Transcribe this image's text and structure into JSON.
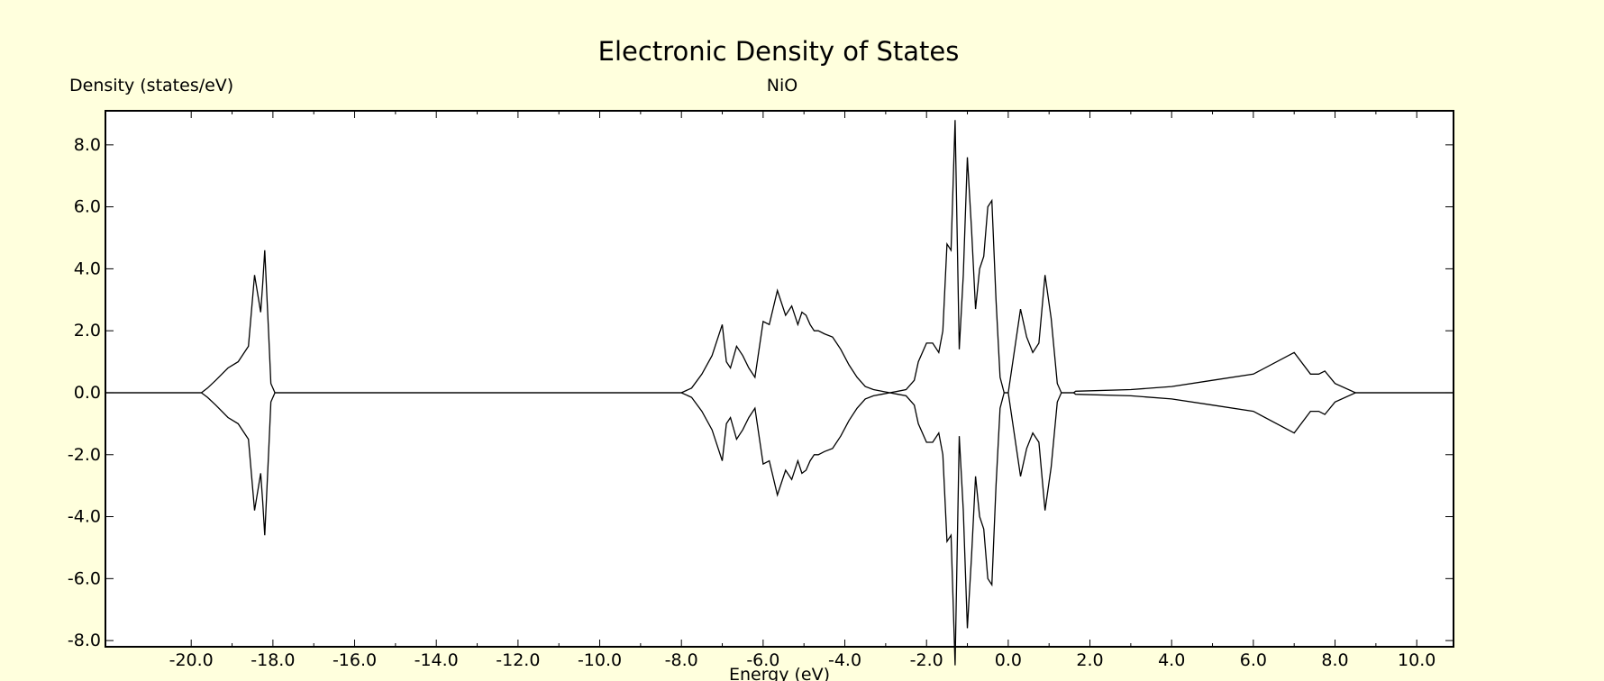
{
  "chart_data": {
    "type": "line",
    "title": "Electronic Density of States",
    "subtitle": "NiO",
    "xlabel": "Energy (eV)",
    "ylabel": "Density (states/eV)",
    "xlim": [
      -22.1,
      10.9
    ],
    "ylim": [
      -8.2,
      9.1
    ],
    "x_ticks": [
      "-20.0",
      "-18.0",
      "-16.0",
      "-14.0",
      "-12.0",
      "-10.0",
      "-8.0",
      "-6.0",
      "-4.0",
      "-2.0",
      "0.0",
      "2.0",
      "4.0",
      "6.0",
      "8.0",
      "10.0"
    ],
    "x_tick_values": [
      -20,
      -18,
      -16,
      -14,
      -12,
      -10,
      -8,
      -6,
      -4,
      -2,
      0,
      2,
      4,
      6,
      8,
      10
    ],
    "y_ticks": [
      "8.0",
      "6.0",
      "4.0",
      "2.0",
      "0.0",
      "-2.0",
      "-4.0",
      "-6.0",
      "-8.0"
    ],
    "y_tick_values": [
      8,
      6,
      4,
      2,
      0,
      -2,
      -4,
      -6,
      -8
    ],
    "grid": false,
    "series": [
      {
        "mirrored": true,
        "x": [
          -22.1,
          -20.0,
          -19.75,
          -19.6,
          -19.4,
          -19.1,
          -18.85,
          -18.6,
          -18.45,
          -18.3,
          -18.25,
          -18.2,
          -18.1,
          -18.05,
          -17.95,
          -17.9,
          -12.0,
          -8.0,
          -7.75,
          -7.5,
          -7.25,
          -7.0,
          -6.9,
          -6.8,
          -6.65,
          -6.5,
          -6.35,
          -6.2,
          -6.0,
          -5.85,
          -5.65,
          -5.45,
          -5.3,
          -5.15,
          -5.05,
          -4.95,
          -4.85,
          -4.75,
          -4.65,
          -4.5,
          -4.3,
          -4.1,
          -3.9,
          -3.7,
          -3.5,
          -3.3,
          -3.1,
          -2.9,
          -2.7,
          -2.5,
          -2.3,
          -2.2,
          -2.0,
          -1.85,
          -1.7,
          -1.6,
          -1.5,
          -1.4,
          -1.3,
          -1.2,
          -1.1,
          -1.0,
          -0.9,
          -0.8,
          -0.7,
          -0.6,
          -0.5,
          -0.4,
          -0.3,
          -0.2,
          -0.1,
          0.0,
          0.3,
          0.45,
          0.6,
          0.75,
          0.9,
          1.05,
          1.2,
          1.3,
          1.45,
          1.6,
          1.65,
          3.0,
          4.0,
          5.0,
          6.0,
          7.0,
          7.4,
          7.6,
          7.75,
          8.0,
          8.5,
          8.7,
          9.0,
          10.9
        ],
        "y": [
          0,
          0,
          0,
          0.15,
          0.4,
          0.8,
          1.0,
          1.5,
          3.8,
          2.6,
          3.5,
          4.6,
          1.8,
          0.3,
          0,
          0,
          0,
          0,
          0.15,
          0.6,
          1.2,
          2.2,
          1.0,
          0.8,
          1.5,
          1.2,
          0.8,
          0.5,
          2.3,
          2.2,
          3.3,
          2.5,
          2.8,
          2.2,
          2.6,
          2.5,
          2.2,
          2.0,
          2.0,
          1.9,
          1.8,
          1.4,
          0.9,
          0.5,
          0.2,
          0.1,
          0.05,
          0,
          0.05,
          0.1,
          0.4,
          1.0,
          1.6,
          1.6,
          1.3,
          2.0,
          4.8,
          4.6,
          8.8,
          1.4,
          3.8,
          7.6,
          5.3,
          2.7,
          4.0,
          4.4,
          6.0,
          6.2,
          3.0,
          0.5,
          0,
          0,
          2.7,
          1.8,
          1.3,
          1.6,
          3.8,
          2.4,
          0.3,
          0,
          0,
          0,
          0.05,
          0.1,
          0.2,
          0.4,
          0.6,
          1.3,
          0.6,
          0.6,
          0.7,
          0.3,
          0,
          0,
          0,
          0
        ]
      }
    ]
  }
}
